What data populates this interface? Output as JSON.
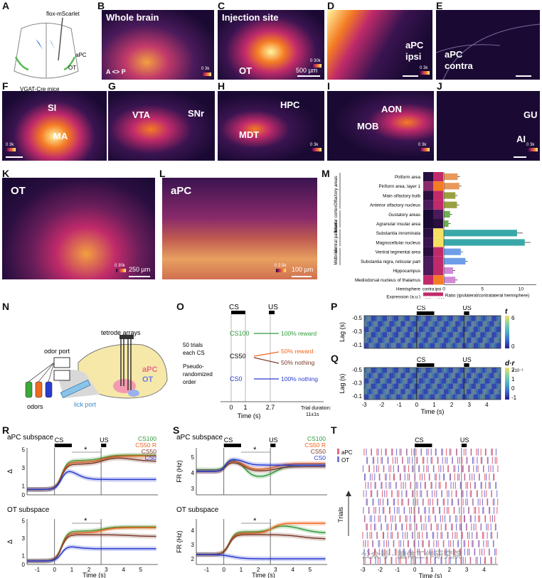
{
  "letters": [
    "A",
    "B",
    "C",
    "D",
    "E",
    "F",
    "G",
    "H",
    "I",
    "J",
    "K",
    "L",
    "M",
    "N",
    "O",
    "P",
    "Q",
    "R",
    "S",
    "T"
  ],
  "panelA": {
    "top": "flox-mScarlet",
    "bottom": "VGAT-Cre mice",
    "apc": "aPC",
    "ot": "OT"
  },
  "panelB": {
    "label": "Whole brain",
    "axis": "A <> P",
    "cb": "0 3k"
  },
  "panelC": {
    "label": "Injection site",
    "ot": "OT",
    "scale": "500 µm",
    "cb": "0 30k"
  },
  "panelD": {
    "label1": "aPC",
    "label2": "ipsi",
    "cb": "0 3k"
  },
  "panelE": {
    "label1": "aPC",
    "label2": "contra"
  },
  "panelF": {
    "l1": "SI",
    "l2": "MA",
    "cb": "0 3k"
  },
  "panelG": {
    "l1": "VTA",
    "l2": "SNr"
  },
  "panelH": {
    "l1": "HPC",
    "l2": "MDT",
    "cb": "0 3k"
  },
  "panelI": {
    "l1": "AON",
    "l2": "MOB",
    "cb": "0 3k"
  },
  "panelJ": {
    "l1": "GU",
    "l2": "AI",
    "cb": "0 3k"
  },
  "panelK": {
    "label": "OT",
    "scale": "250 µm",
    "cb": "0 30k"
  },
  "panelL": {
    "label": "aPC",
    "scale": "100 µm",
    "cb": "0 2.5k"
  },
  "panelM": {
    "regions": [
      "Piriform area",
      "Piriform area, layer 1",
      "Main olfactory bulb",
      "Anterior olfactory nucleus",
      "Gustatory areas",
      "Agranular insular area",
      "Substantia innominata",
      "Magnocellular nucleus",
      "Ventral tegmental area",
      "Substantia nigra, reticular part",
      "Hippocampus",
      "Mediodorsal nucleus of thalamus"
    ],
    "groups": [
      "Olfactory areas",
      "Insular cortex",
      "Ventral pallidum",
      "Midbrain"
    ],
    "ratios": [
      1.8,
      2.0,
      1.5,
      1.7,
      0.8,
      0.6,
      9.5,
      10.5,
      2.2,
      2.8,
      1.2,
      1.5
    ],
    "bar_colors": [
      "#e8985a",
      "#e8985a",
      "#9aa040",
      "#9aa040",
      "#6cb050",
      "#6cb050",
      "#3aa8a8",
      "#3aa8a8",
      "#6f9ee8",
      "#6f9ee8",
      "#d08ad6",
      "#d08ad6"
    ],
    "xticks": [
      "0",
      "5",
      "10"
    ],
    "xlabel": "Ratio (ipsilateral/contralateral hemisphere)",
    "hemi_label": "Hemisphere",
    "contra": "contra",
    "ipsi": "ipsi",
    "expr_label": "Expression (a.u.)",
    "expr_lo": "< 300",
    "expr_hi": ">1000"
  },
  "panelN": {
    "tetrode": "tetrode arrays",
    "odor_port": "odor port",
    "odors": "odors",
    "lick": "lick port",
    "apc": "aPC",
    "ot": "OT"
  },
  "panelO": {
    "cs": "CS",
    "us": "US",
    "left": [
      "50 trials",
      "each CS",
      "Pseudo-",
      "randomized",
      "order"
    ],
    "cs100": "CS100",
    "cs50": "CS50",
    "cs0": "CS0",
    "out1": "100% reward",
    "out2": "50% reward",
    "out3": "50% nothing",
    "out4": "100% nothing",
    "xticks": [
      "0",
      "1",
      "2.7"
    ],
    "xlabel": "Time (s)",
    "dur1": "Trial duration:",
    "dur2": "11±1s"
  },
  "panelP": {
    "cs": "CS",
    "us": "US",
    "ylabel": "Lag (s)",
    "yticks": [
      "-0.5",
      "-0.3",
      "-0.1"
    ],
    "cbl": "t",
    "cbt": [
      "6",
      "0"
    ]
  },
  "panelQ": {
    "cs": "CS",
    "us": "US",
    "ylabel": "Lag (s)",
    "yticks": [
      "-0.5",
      "-0.3",
      "-0.1"
    ],
    "cbl": "d·r",
    "cbexp": "×10⁻²",
    "cbt": [
      "2",
      "1",
      "0",
      "-1"
    ],
    "xticks": [
      "-3",
      "-2",
      "-1",
      "0",
      "1",
      "2",
      "3",
      "4"
    ],
    "xlabel": "Time (s)"
  },
  "panelR": {
    "title1": "aPC subspace",
    "title2": "OT subspace",
    "cs": "CS",
    "us": "US",
    "ylabel": "Δ",
    "legend": [
      "CS100",
      "CS50 R",
      "CS50",
      "CS0"
    ],
    "legend_colors": [
      "#2e9a3a",
      "#f0641e",
      "#7a3c2c",
      "#2a3bd0"
    ],
    "yticks1": [
      "0",
      "1",
      "3",
      "5"
    ],
    "yticks2": [
      "0",
      "1",
      "3",
      "5"
    ],
    "xticks": [
      "-1",
      "0",
      "1",
      "2",
      "3",
      "4",
      "5"
    ],
    "xlabel": "Time (s)",
    "star": "*"
  },
  "panelS": {
    "title1": "aPC subspace",
    "title2": "OT subspace",
    "cs": "CS",
    "us": "US",
    "ylabel": "FR (Hz)",
    "legend": [
      "CS100",
      "CS50 R",
      "CS50",
      "CS0"
    ],
    "yticks1": [
      "3",
      "4",
      "5"
    ],
    "yticks2": [
      "2",
      "3",
      "4"
    ],
    "xticks": [
      "-1",
      "0",
      "1",
      "2",
      "3",
      "4",
      "5"
    ],
    "xlabel": "Time (s)",
    "star": "*"
  },
  "panelT": {
    "cs": "CS",
    "us": "US",
    "legend1": "aPC",
    "legend2": "OT",
    "ylabel": "Trials",
    "xticks": [
      "-3",
      "-2",
      "-1",
      "0",
      "1",
      "2",
      "3",
      "4"
    ],
    "xlabel": "Time (s)"
  },
  "watermark": "公众号 · 脑体工作研究院"
}
